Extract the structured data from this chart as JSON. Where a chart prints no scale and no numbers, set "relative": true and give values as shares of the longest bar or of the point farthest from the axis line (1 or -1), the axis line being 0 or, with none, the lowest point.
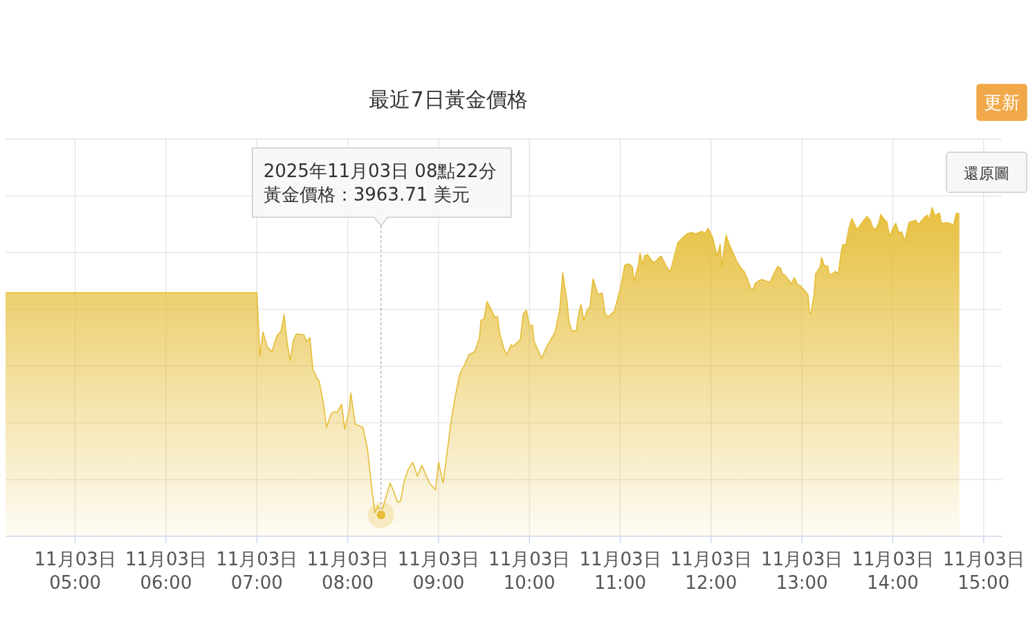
{
  "chart_data": {
    "type": "area",
    "title": "最近7日黃金價格",
    "relative": true,
    "grid": true,
    "color": "#e5bd36",
    "xlim": [
      "2025-11-03T04:14",
      "2025-11-03T15:12"
    ],
    "xticks": [
      {
        "value": "2025-11-03T05:00",
        "label": "11月03日\n05:00"
      },
      {
        "value": "2025-11-03T06:00",
        "label": "11月03日\n06:00"
      },
      {
        "value": "2025-11-03T07:00",
        "label": "11月03日\n07:00"
      },
      {
        "value": "2025-11-03T08:00",
        "label": "11月03日\n08:00"
      },
      {
        "value": "2025-11-03T09:00",
        "label": "11月03日\n09:00"
      },
      {
        "value": "2025-11-03T10:00",
        "label": "11月03日\n10:00"
      },
      {
        "value": "2025-11-03T11:00",
        "label": "11月03日\n11:00"
      },
      {
        "value": "2025-11-03T12:00",
        "label": "11月03日\n12:00"
      },
      {
        "value": "2025-11-03T13:00",
        "label": "11月03日\n13:00"
      },
      {
        "value": "2025-11-03T14:00",
        "label": "11月03日\n14:00"
      },
      {
        "value": "2025-11-03T15:00",
        "label": "11月03日\n15:00"
      }
    ],
    "x": [
      "2025-11-03T04:14",
      "2025-11-03T07:00",
      "2025-11-03T07:02",
      "2025-11-03T07:04",
      "2025-11-03T07:07",
      "2025-11-03T07:10",
      "2025-11-03T07:13",
      "2025-11-03T07:16",
      "2025-11-03T07:18",
      "2025-11-03T07:20",
      "2025-11-03T07:22",
      "2025-11-03T07:24",
      "2025-11-03T07:26",
      "2025-11-03T07:31",
      "2025-11-03T07:33",
      "2025-11-03T07:35",
      "2025-11-03T07:37",
      "2025-11-03T07:40",
      "2025-11-03T07:41",
      "2025-11-03T07:44",
      "2025-11-03T07:46",
      "2025-11-03T07:49",
      "2025-11-03T07:51",
      "2025-11-03T07:53",
      "2025-11-03T07:56",
      "2025-11-03T07:58",
      "2025-11-03T08:01",
      "2025-11-03T08:02",
      "2025-11-03T08:05",
      "2025-11-03T08:10",
      "2025-11-03T08:13",
      "2025-11-03T08:16",
      "2025-11-03T08:18",
      "2025-11-03T08:20",
      "2025-11-03T08:22",
      "2025-11-03T08:24",
      "2025-11-03T08:28",
      "2025-11-03T08:30",
      "2025-11-03T08:33",
      "2025-11-03T08:35",
      "2025-11-03T08:37",
      "2025-11-03T08:40",
      "2025-11-03T08:43",
      "2025-11-03T08:46",
      "2025-11-03T08:49",
      "2025-11-03T08:54",
      "2025-11-03T08:58",
      "2025-11-03T09:00",
      "2025-11-03T09:03",
      "2025-11-03T09:06",
      "2025-11-03T09:08",
      "2025-11-03T09:11",
      "2025-11-03T09:14",
      "2025-11-03T09:17",
      "2025-11-03T09:20",
      "2025-11-03T09:24",
      "2025-11-03T09:27",
      "2025-11-03T09:28",
      "2025-11-03T09:30",
      "2025-11-03T09:32",
      "2025-11-03T09:35",
      "2025-11-03T09:37",
      "2025-11-03T09:39",
      "2025-11-03T09:40",
      "2025-11-03T09:43",
      "2025-11-03T09:45",
      "2025-11-03T09:48",
      "2025-11-03T09:49",
      "2025-11-03T09:54",
      "2025-11-03T09:56",
      "2025-11-03T09:58",
      "2025-11-03T10:00",
      "2025-11-03T10:02",
      "2025-11-03T10:03",
      "2025-11-03T10:07",
      "2025-11-03T10:08",
      "2025-11-03T10:11",
      "2025-11-03T10:14",
      "2025-11-03T10:17",
      "2025-11-03T10:20",
      "2025-11-03T10:22",
      "2025-11-03T10:25",
      "2025-11-03T10:26",
      "2025-11-03T10:28",
      "2025-11-03T10:31",
      "2025-11-03T10:32",
      "2025-11-03T10:34",
      "2025-11-03T10:36",
      "2025-11-03T10:38",
      "2025-11-03T10:40",
      "2025-11-03T10:42",
      "2025-11-03T10:45",
      "2025-11-03T10:46",
      "2025-11-03T10:48",
      "2025-11-03T10:50",
      "2025-11-03T10:52",
      "2025-11-03T10:56",
      "2025-11-03T11:00",
      "2025-11-03T11:03",
      "2025-11-03T11:06",
      "2025-11-03T11:08",
      "2025-11-03T11:09",
      "2025-11-03T11:12",
      "2025-11-03T11:13",
      "2025-11-03T11:15",
      "2025-11-03T11:16",
      "2025-11-03T11:18",
      "2025-11-03T11:22",
      "2025-11-03T11:24",
      "2025-11-03T11:27",
      "2025-11-03T11:30",
      "2025-11-03T11:33",
      "2025-11-03T11:36",
      "2025-11-03T11:38",
      "2025-11-03T11:41",
      "2025-11-03T11:44",
      "2025-11-03T11:47",
      "2025-11-03T11:50",
      "2025-11-03T11:52",
      "2025-11-03T11:54",
      "2025-11-03T11:56",
      "2025-11-03T11:58",
      "2025-11-03T12:01",
      "2025-11-03T12:04",
      "2025-11-03T12:06",
      "2025-11-03T12:07",
      "2025-11-03T12:09",
      "2025-11-03T12:10",
      "2025-11-03T12:12",
      "2025-11-03T12:15",
      "2025-11-03T12:17",
      "2025-11-03T12:20",
      "2025-11-03T12:22",
      "2025-11-03T12:24",
      "2025-11-03T12:26",
      "2025-11-03T12:28",
      "2025-11-03T12:29",
      "2025-11-03T12:32",
      "2025-11-03T12:34",
      "2025-11-03T12:36",
      "2025-11-03T12:39",
      "2025-11-03T12:41",
      "2025-11-03T12:44",
      "2025-11-03T12:46",
      "2025-11-03T12:47",
      "2025-11-03T12:49",
      "2025-11-03T12:53",
      "2025-11-03T12:55",
      "2025-11-03T12:57",
      "2025-11-03T12:59",
      "2025-11-03T13:01",
      "2025-11-03T13:02",
      "2025-11-03T13:04",
      "2025-11-03T13:05",
      "2025-11-03T13:06",
      "2025-11-03T13:08",
      "2025-11-03T13:09",
      "2025-11-03T13:12",
      "2025-11-03T13:13",
      "2025-11-03T13:15",
      "2025-11-03T13:17",
      "2025-11-03T13:18",
      "2025-11-03T13:20",
      "2025-11-03T13:22",
      "2025-11-03T13:24",
      "2025-11-03T13:26",
      "2025-11-03T13:27",
      "2025-11-03T13:29",
      "2025-11-03T13:31",
      "2025-11-03T13:33",
      "2025-11-03T13:36",
      "2025-11-03T13:37",
      "2025-11-03T13:41",
      "2025-11-03T13:43",
      "2025-11-03T13:45",
      "2025-11-03T13:47",
      "2025-11-03T13:49",
      "2025-11-03T13:51",
      "2025-11-03T13:52",
      "2025-11-03T13:55",
      "2025-11-03T13:56",
      "2025-11-03T13:58",
      "2025-11-03T14:00",
      "2025-11-03T14:02",
      "2025-11-03T14:04",
      "2025-11-03T14:06",
      "2025-11-03T14:08",
      "2025-11-03T14:10",
      "2025-11-03T14:11",
      "2025-11-03T14:14",
      "2025-11-03T14:15",
      "2025-11-03T14:17",
      "2025-11-03T14:21",
      "2025-11-03T14:23",
      "2025-11-03T14:24",
      "2025-11-03T14:26",
      "2025-11-03T14:28",
      "2025-11-03T14:29",
      "2025-11-03T14:31",
      "2025-11-03T14:32",
      "2025-11-03T14:35",
      "2025-11-03T14:38",
      "2025-11-03T14:40",
      "2025-11-03T14:42",
      "2025-11-03T14:44"
    ],
    "values": [
      0.741,
      0.741,
      0.547,
      0.621,
      0.575,
      0.562,
      0.608,
      0.625,
      0.674,
      0.589,
      0.535,
      0.594,
      0.615,
      0.613,
      0.592,
      0.604,
      0.509,
      0.478,
      0.474,
      0.404,
      0.331,
      0.373,
      0.379,
      0.377,
      0.402,
      0.326,
      0.383,
      0.436,
      0.341,
      0.331,
      0.267,
      0.141,
      0.072,
      0.093,
      0.065,
      0.099,
      0.162,
      0.141,
      0.103,
      0.107,
      0.162,
      0.204,
      0.225,
      0.183,
      0.215,
      0.162,
      0.141,
      0.225,
      0.162,
      0.267,
      0.341,
      0.425,
      0.493,
      0.52,
      0.552,
      0.562,
      0.604,
      0.657,
      0.661,
      0.714,
      0.688,
      0.667,
      0.669,
      0.625,
      0.573,
      0.552,
      0.583,
      0.577,
      0.598,
      0.678,
      0.688,
      0.64,
      0.642,
      0.594,
      0.552,
      0.541,
      0.573,
      0.598,
      0.621,
      0.688,
      0.802,
      0.709,
      0.657,
      0.625,
      0.625,
      0.663,
      0.705,
      0.657,
      0.688,
      0.699,
      0.783,
      0.741,
      0.735,
      0.741,
      0.678,
      0.667,
      0.684,
      0.752,
      0.825,
      0.829,
      0.819,
      0.777,
      0.825,
      0.861,
      0.825,
      0.853,
      0.857,
      0.832,
      0.84,
      0.853,
      0.825,
      0.804,
      0.857,
      0.893,
      0.907,
      0.92,
      0.924,
      0.92,
      0.924,
      0.928,
      0.922,
      0.937,
      0.909,
      0.853,
      0.888,
      0.819,
      0.888,
      0.916,
      0.888,
      0.857,
      0.836,
      0.815,
      0.804,
      0.783,
      0.756,
      0.752,
      0.768,
      0.779,
      0.781,
      0.777,
      0.773,
      0.794,
      0.821,
      0.815,
      0.798,
      0.794,
      0.768,
      0.787,
      0.766,
      0.762,
      0.752,
      0.747,
      0.735,
      0.682,
      0.678,
      0.735,
      0.798,
      0.819,
      0.848,
      0.821,
      0.823,
      0.796,
      0.798,
      0.806,
      0.798,
      0.867,
      0.888,
      0.886,
      0.937,
      0.966,
      0.937,
      0.937,
      0.962,
      0.973,
      0.962,
      0.937,
      0.935,
      0.956,
      0.979,
      0.96,
      0.958,
      0.912,
      0.937,
      0.952,
      0.924,
      0.926,
      0.897,
      0.941,
      0.956,
      0.96,
      0.962,
      0.949,
      0.971,
      0.977,
      0.96,
      1,
      0.973,
      0.979,
      0.983,
      0.952,
      0.954,
      0.952,
      0.945,
      0.983,
      0.981
    ],
    "annotations": [
      "2025年11月03日 08點22分",
      {
        "text": "黃金價格：3963.71 美元",
        "x": "2025-11-03T08:22",
        "y": 0.065
      },
      "更新",
      "還原圖"
    ]
  }
}
